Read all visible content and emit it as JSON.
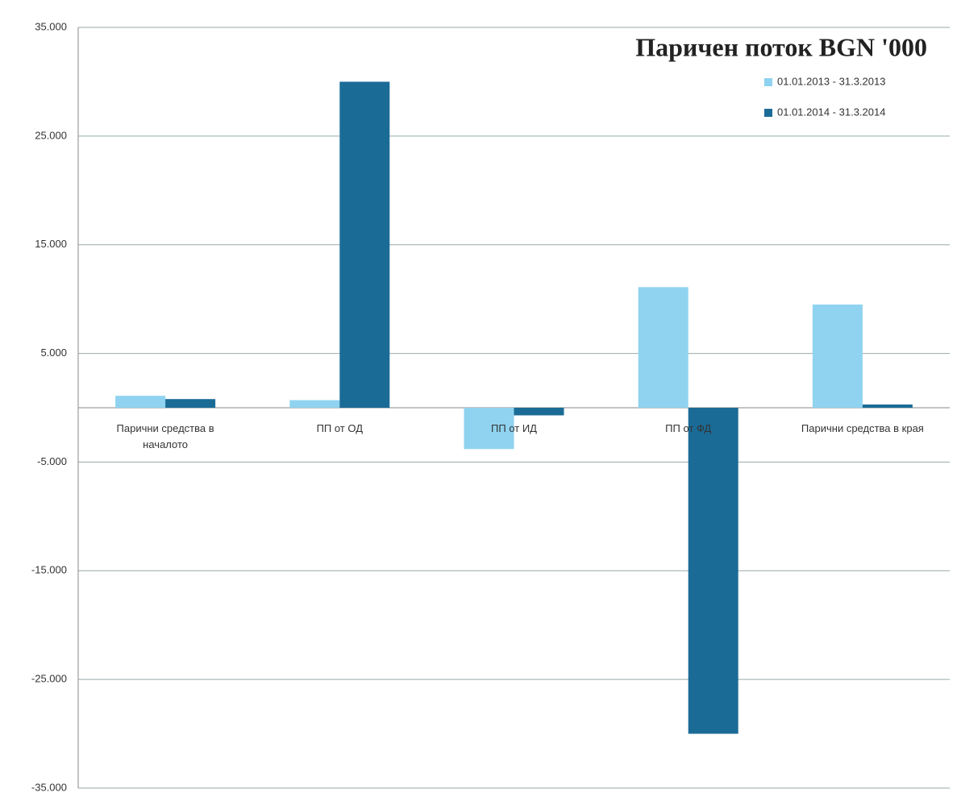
{
  "chart_data": {
    "type": "bar",
    "title": "Паричен поток  BGN '000",
    "categories": [
      "Парични средства в началото",
      "ПП от ОД",
      "ПП от ИД",
      "ПП от ФД",
      "Парични средства в края"
    ],
    "series": [
      {
        "name": "01.01.2013 - 31.3.2013",
        "color": "#8fd3f0",
        "values": [
          1100,
          700,
          -3800,
          11100,
          9500
        ]
      },
      {
        "name": "01.01.2014 - 31.3.2014",
        "color": "#1b6b97",
        "values": [
          800,
          30000,
          -700,
          -30000,
          300
        ]
      }
    ],
    "ylim": [
      -35000,
      35000
    ],
    "yticks": [
      {
        "value": -35000,
        "label": "-35.000"
      },
      {
        "value": -25000,
        "label": "-25.000"
      },
      {
        "value": -15000,
        "label": "-15.000"
      },
      {
        "value": -5000,
        "label": "-5.000"
      },
      {
        "value": 5000,
        "label": "5.000"
      },
      {
        "value": 15000,
        "label": "15.000"
      },
      {
        "value": 25000,
        "label": "25.000"
      },
      {
        "value": 35000,
        "label": "35.000"
      }
    ],
    "grid": true,
    "legend": "top-right"
  }
}
